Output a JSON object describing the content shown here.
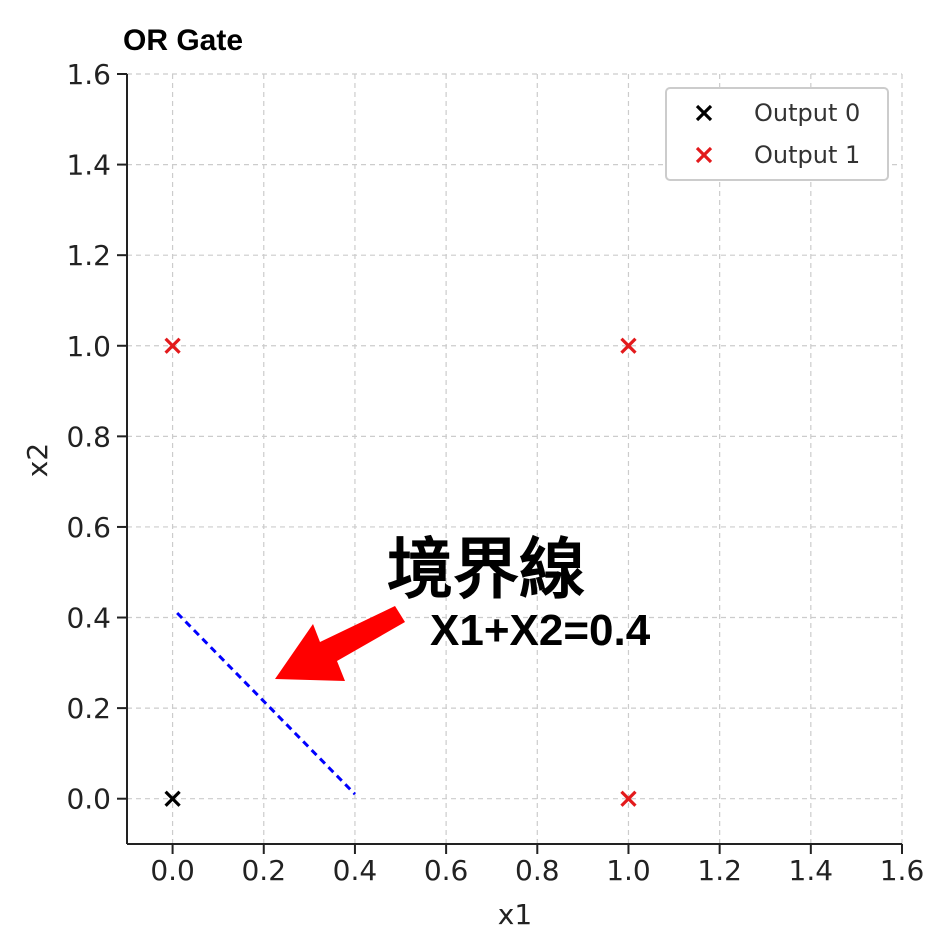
{
  "chart_data": {
    "type": "scatter",
    "title": "OR Gate",
    "xlabel": "x1",
    "ylabel": "x2",
    "xlim": [
      -0.1,
      1.6
    ],
    "ylim": [
      -0.1,
      1.6
    ],
    "xticks": [
      "0.0",
      "0.2",
      "0.4",
      "0.6",
      "0.8",
      "1.0",
      "1.2",
      "1.4",
      "1.6"
    ],
    "yticks": [
      "0.0",
      "0.2",
      "0.4",
      "0.6",
      "0.8",
      "1.0",
      "1.2",
      "1.4",
      "1.6"
    ],
    "grid": true,
    "legend_position": "top-right",
    "series": [
      {
        "name": "Output 0",
        "color": "#000000",
        "marker": "x",
        "points": [
          [
            0,
            0
          ]
        ]
      },
      {
        "name": "Output 1",
        "color": "#e31a1c",
        "marker": "x",
        "points": [
          [
            0,
            1
          ],
          [
            1,
            1
          ],
          [
            1,
            0
          ]
        ]
      }
    ],
    "boundary_line": {
      "color": "#0000ff",
      "style": "dashed",
      "points": [
        [
          0.01,
          0.41
        ],
        [
          0.4,
          0.01
        ]
      ]
    },
    "annotation": {
      "title": "境界線",
      "equation": "X1+X2=0.4",
      "arrow_color": "#ff0000"
    }
  }
}
